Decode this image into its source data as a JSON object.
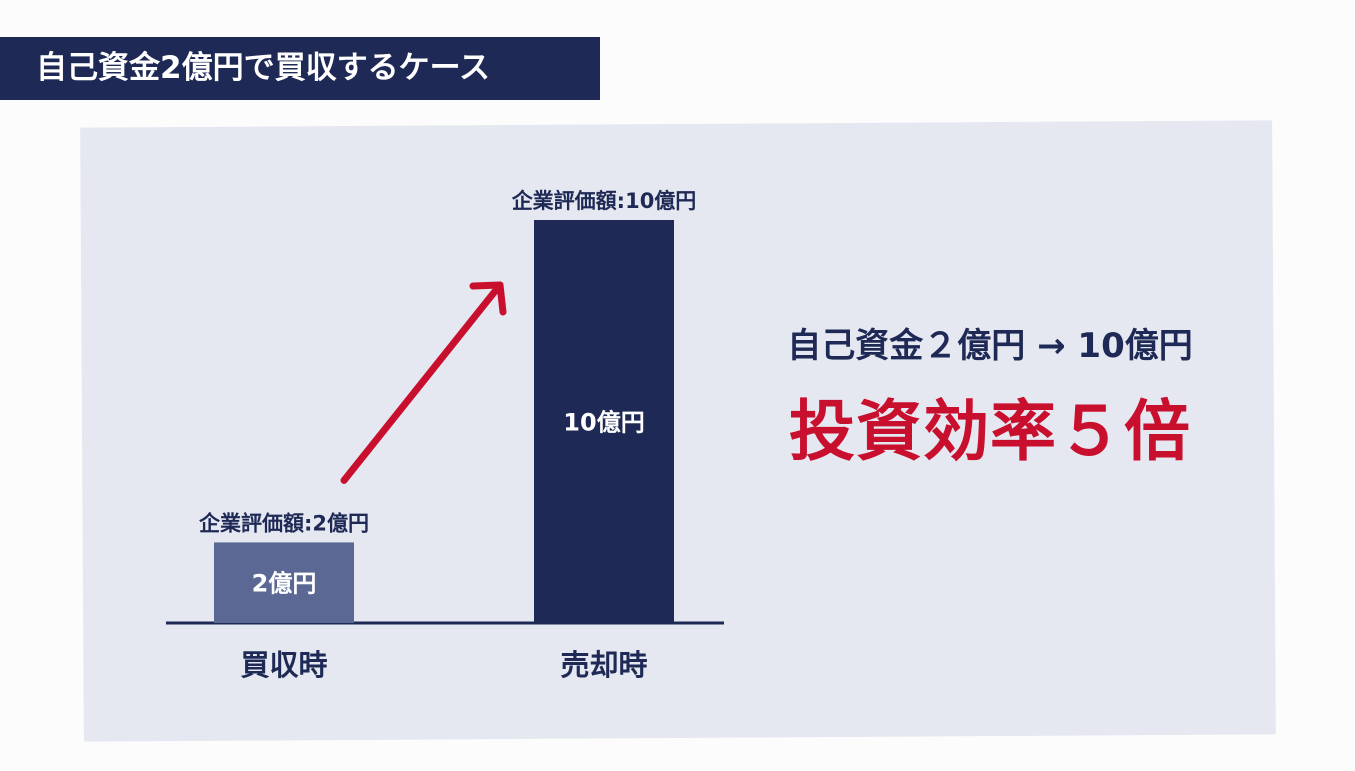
{
  "header": {
    "title": "自己資金2億円で買収するケース"
  },
  "summary": {
    "line": "自己資金２億円 → 10億円",
    "highlight": "投資効率５倍"
  },
  "colors": {
    "navy": "#1e2a55",
    "bar_light": "#5b6894",
    "panel": "#e6e8f1",
    "accent_red": "#c8102e"
  },
  "chart_data": {
    "type": "bar",
    "categories": [
      "買収時",
      "売却時"
    ],
    "values": [
      2,
      10
    ],
    "unit": "億円",
    "bar_labels": [
      "2億円",
      "10億円"
    ],
    "top_labels": [
      "企業評価額:2億円",
      "企業評価額:10億円"
    ],
    "bar_colors": [
      "#5b6894",
      "#1e2a55"
    ],
    "title": "",
    "xlabel": "",
    "ylabel": "",
    "ylim": [
      0,
      10
    ],
    "grid": false,
    "annotations": [
      {
        "type": "arrow",
        "from": "買収時",
        "to": "売却時",
        "color": "#c8102e"
      }
    ]
  }
}
